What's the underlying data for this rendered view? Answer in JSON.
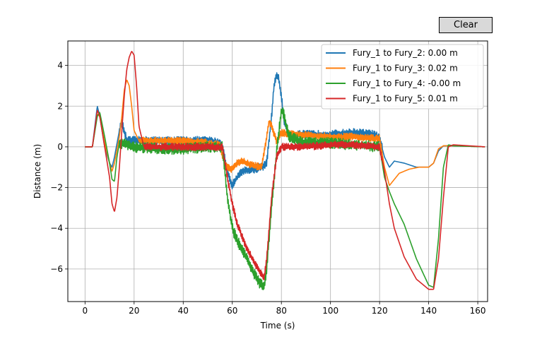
{
  "toolbar": {
    "clear_label": "Clear"
  },
  "chart_data": {
    "type": "line",
    "title": "",
    "xlabel": "Time (s)",
    "ylabel": "Distance (m)",
    "xlim": [
      -7,
      164
    ],
    "ylim": [
      -7.6,
      5.2
    ],
    "xticks": [
      0,
      20,
      40,
      60,
      80,
      100,
      120,
      140,
      160
    ],
    "yticks": [
      -6,
      -4,
      -2,
      0,
      2,
      4
    ],
    "grid": true,
    "legend_position": "top-right",
    "series": [
      {
        "name": "Fury_1 to Fury_2: 0.00 m",
        "color": "#1f77b4",
        "noise": 0.35,
        "noise_range": [
          14,
          121
        ],
        "points": [
          [
            0,
            0
          ],
          [
            3,
            0
          ],
          [
            5,
            2.0
          ],
          [
            6,
            1.5
          ],
          [
            8,
            0
          ],
          [
            10,
            -0.8
          ],
          [
            11,
            -1.0
          ],
          [
            12,
            -0.5
          ],
          [
            14,
            0.8
          ],
          [
            15,
            1.2
          ],
          [
            17,
            0.3
          ],
          [
            20,
            0.3
          ],
          [
            30,
            0.3
          ],
          [
            40,
            0.3
          ],
          [
            50,
            0.3
          ],
          [
            55,
            0.2
          ],
          [
            56,
            0
          ],
          [
            58,
            -1.2
          ],
          [
            60,
            -1.9
          ],
          [
            62,
            -1.5
          ],
          [
            64,
            -1.2
          ],
          [
            68,
            -1.1
          ],
          [
            72,
            -1.0
          ],
          [
            74,
            -0.8
          ],
          [
            76,
            1.5
          ],
          [
            77,
            3.0
          ],
          [
            78,
            3.55
          ],
          [
            79,
            3.3
          ],
          [
            80,
            2.5
          ],
          [
            81,
            1.3
          ],
          [
            83,
            0.6
          ],
          [
            90,
            0.6
          ],
          [
            100,
            0.6
          ],
          [
            110,
            0.7
          ],
          [
            118,
            0.6
          ],
          [
            120,
            0.4
          ],
          [
            122,
            -0.5
          ],
          [
            124,
            -1.0
          ],
          [
            126,
            -0.7
          ],
          [
            130,
            -0.8
          ],
          [
            135,
            -1.0
          ],
          [
            140,
            -1.0
          ],
          [
            142,
            -0.8
          ],
          [
            144,
            -0.2
          ],
          [
            146,
            0.05
          ],
          [
            150,
            0.05
          ],
          [
            163,
            0
          ]
        ]
      },
      {
        "name": "Fury_1 to Fury_3: 0.02 m",
        "color": "#ff7f0e",
        "noise": 0.3,
        "noise_range": [
          22,
          121
        ],
        "points": [
          [
            0,
            0
          ],
          [
            3,
            0
          ],
          [
            5,
            1.6
          ],
          [
            6,
            1.5
          ],
          [
            8,
            0.2
          ],
          [
            10,
            -0.8
          ],
          [
            11,
            -1.2
          ],
          [
            12,
            -0.8
          ],
          [
            14,
            0.5
          ],
          [
            15,
            1.5
          ],
          [
            16,
            2.8
          ],
          [
            17,
            3.3
          ],
          [
            18,
            3.0
          ],
          [
            19,
            2.0
          ],
          [
            20,
            0.8
          ],
          [
            22,
            0.3
          ],
          [
            30,
            0.3
          ],
          [
            40,
            0.3
          ],
          [
            50,
            0.2
          ],
          [
            55,
            0.1
          ],
          [
            56,
            -0.5
          ],
          [
            58,
            -1.0
          ],
          [
            60,
            -1.1
          ],
          [
            62,
            -0.8
          ],
          [
            64,
            -0.7
          ],
          [
            68,
            -0.9
          ],
          [
            72,
            -1.0
          ],
          [
            74,
            0.5
          ],
          [
            75,
            1.3
          ],
          [
            76,
            1.0
          ],
          [
            78,
            0.3
          ],
          [
            80,
            0.7
          ],
          [
            85,
            0.6
          ],
          [
            100,
            0.5
          ],
          [
            110,
            0.5
          ],
          [
            120,
            0.4
          ],
          [
            122,
            -1.0
          ],
          [
            124,
            -1.9
          ],
          [
            126,
            -1.6
          ],
          [
            128,
            -1.3
          ],
          [
            132,
            -1.1
          ],
          [
            136,
            -1.0
          ],
          [
            140,
            -1.0
          ],
          [
            142,
            -0.8
          ],
          [
            144,
            -0.1
          ],
          [
            146,
            0.05
          ],
          [
            150,
            0.05
          ],
          [
            163,
            0
          ]
        ]
      },
      {
        "name": "Fury_1 to Fury_4: -0.00 m",
        "color": "#2ca02c",
        "noise": 0.45,
        "noise_range": [
          14,
          120
        ],
        "points": [
          [
            0,
            0
          ],
          [
            3,
            0
          ],
          [
            5,
            1.5
          ],
          [
            6,
            1.7
          ],
          [
            8,
            0.5
          ],
          [
            10,
            -0.8
          ],
          [
            11,
            -1.6
          ],
          [
            12,
            -1.7
          ],
          [
            13,
            -0.5
          ],
          [
            14,
            0.2
          ],
          [
            20,
            0
          ],
          [
            30,
            -0.1
          ],
          [
            40,
            -0.1
          ],
          [
            50,
            0
          ],
          [
            56,
            0
          ],
          [
            58,
            -2.5
          ],
          [
            60,
            -4.0
          ],
          [
            62,
            -4.6
          ],
          [
            66,
            -5.5
          ],
          [
            70,
            -6.5
          ],
          [
            72,
            -6.8
          ],
          [
            73,
            -6.8
          ],
          [
            74,
            -6.0
          ],
          [
            76,
            -3.0
          ],
          [
            78,
            -0.3
          ],
          [
            80,
            1.8
          ],
          [
            81,
            1.6
          ],
          [
            83,
            0.5
          ],
          [
            90,
            0.2
          ],
          [
            100,
            0.2
          ],
          [
            110,
            0.1
          ],
          [
            120,
            0
          ],
          [
            122,
            -1.5
          ],
          [
            124,
            -2.2
          ],
          [
            126,
            -2.8
          ],
          [
            130,
            -3.8
          ],
          [
            135,
            -5.5
          ],
          [
            140,
            -6.8
          ],
          [
            142,
            -6.9
          ],
          [
            144,
            -4.5
          ],
          [
            146,
            -1.0
          ],
          [
            148,
            0.1
          ],
          [
            150,
            0.05
          ],
          [
            163,
            0
          ]
        ]
      },
      {
        "name": "Fury_1 to Fury_5: 0.01 m",
        "color": "#d62728",
        "noise": 0.3,
        "noise_range": [
          24,
          121
        ],
        "points": [
          [
            0,
            0
          ],
          [
            3,
            0
          ],
          [
            5,
            1.8
          ],
          [
            6,
            1.5
          ],
          [
            8,
            0
          ],
          [
            10,
            -1.5
          ],
          [
            11,
            -2.8
          ],
          [
            12,
            -3.2
          ],
          [
            13,
            -2.5
          ],
          [
            14,
            -1.0
          ],
          [
            15,
            0.8
          ],
          [
            16,
            2.5
          ],
          [
            17,
            3.8
          ],
          [
            18,
            4.4
          ],
          [
            19,
            4.7
          ],
          [
            20,
            4.5
          ],
          [
            21,
            3.0
          ],
          [
            22,
            1.0
          ],
          [
            24,
            0
          ],
          [
            30,
            0
          ],
          [
            40,
            0
          ],
          [
            50,
            0
          ],
          [
            56,
            0
          ],
          [
            58,
            -1.5
          ],
          [
            60,
            -2.8
          ],
          [
            62,
            -3.8
          ],
          [
            66,
            -5.0
          ],
          [
            70,
            -5.9
          ],
          [
            72,
            -6.3
          ],
          [
            73,
            -6.4
          ],
          [
            74,
            -5.5
          ],
          [
            76,
            -2.5
          ],
          [
            78,
            -0.5
          ],
          [
            80,
            0
          ],
          [
            90,
            0
          ],
          [
            100,
            0.1
          ],
          [
            110,
            0.1
          ],
          [
            120,
            0
          ],
          [
            122,
            -1.2
          ],
          [
            124,
            -2.8
          ],
          [
            126,
            -4.0
          ],
          [
            130,
            -5.4
          ],
          [
            135,
            -6.5
          ],
          [
            140,
            -7.0
          ],
          [
            142,
            -7.0
          ],
          [
            144,
            -5.5
          ],
          [
            146,
            -2.5
          ],
          [
            148,
            0
          ],
          [
            150,
            0.1
          ],
          [
            163,
            0
          ]
        ]
      }
    ]
  }
}
